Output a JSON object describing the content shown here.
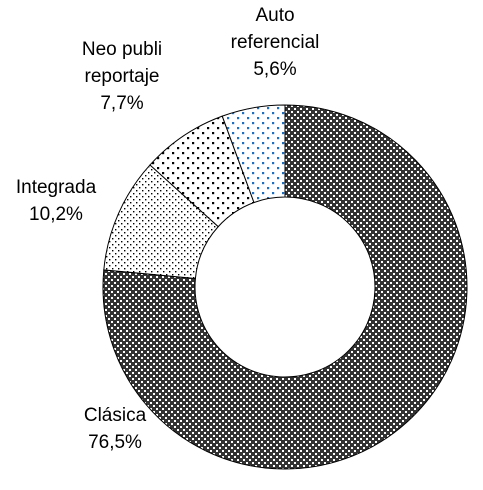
{
  "chart_data": {
    "type": "donut",
    "categories": [
      "Clásica",
      "Integrada",
      "Neo publi reportaje",
      "Auto referencial"
    ],
    "values": [
      76.5,
      10.2,
      7.7,
      5.6
    ],
    "value_labels": [
      "76,5%",
      "10,2%",
      "7,7%",
      "5,6%"
    ]
  }
}
